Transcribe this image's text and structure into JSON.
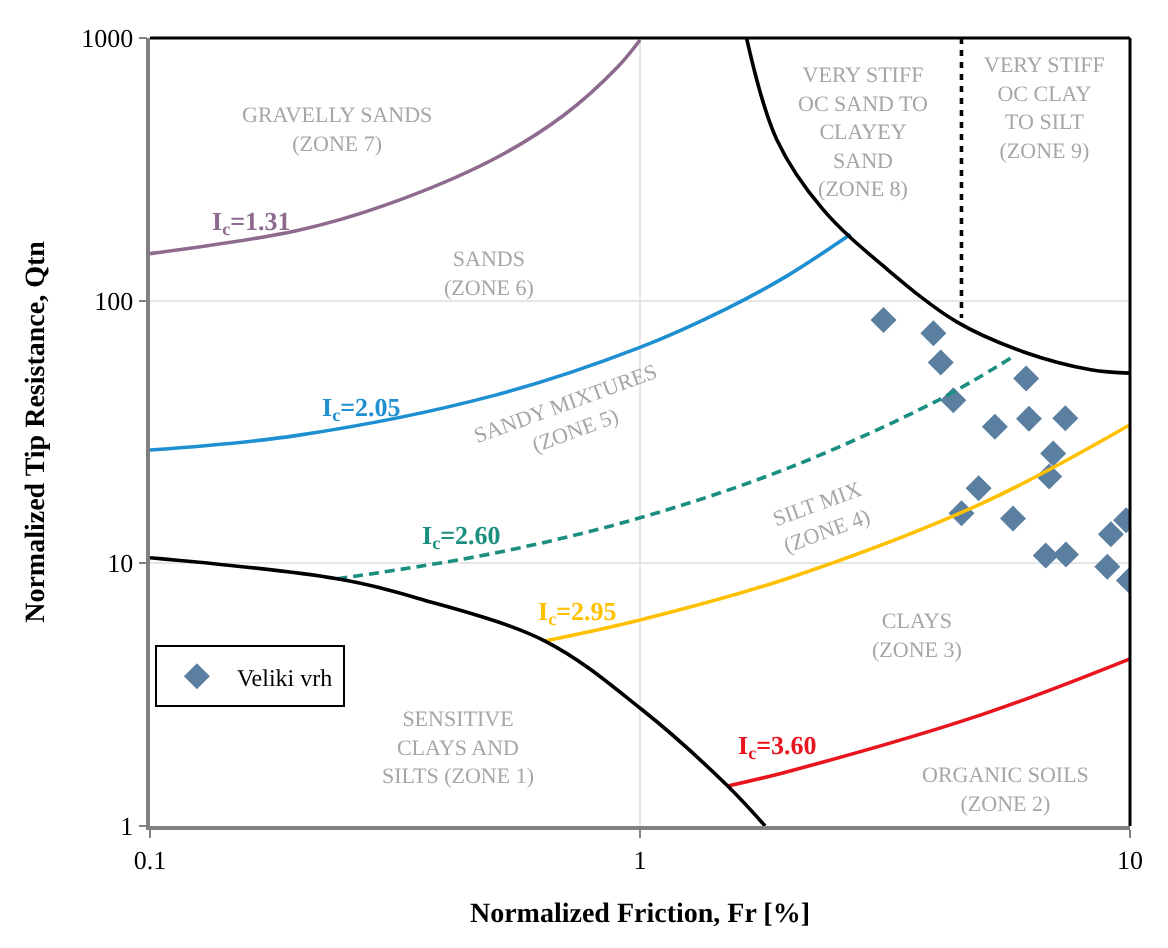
{
  "chart_data": {
    "type": "scatter",
    "xlabel": "Normalized Friction, Fr [%]",
    "ylabel": "Normalized Tip Resistance, Qtn",
    "log": "xy",
    "xlim": [
      0.1,
      10
    ],
    "ylim": [
      1,
      1000
    ],
    "xticks": [
      0.1,
      1,
      10
    ],
    "yticks": [
      1,
      10,
      100,
      1000
    ],
    "grid": true,
    "legend": "left",
    "series": [
      {
        "name": "Veliki vrh",
        "type": "scatter",
        "marker": "diamond",
        "color": "#5b7fa0",
        "x": [
          3.14,
          3.97,
          4.11,
          6.14,
          4.36,
          5.3,
          6.22,
          7.38,
          6.97,
          6.84,
          4.91,
          4.53,
          5.77,
          6.73,
          7.4,
          9.14,
          9.82,
          8.99,
          9.95
        ],
        "values": [
          84.4,
          75.2,
          58.2,
          50.6,
          41.8,
          33.1,
          35.5,
          35.7,
          26.2,
          21.4,
          19.3,
          15.5,
          14.8,
          10.7,
          10.8,
          12.9,
          14.6,
          9.7,
          8.6
        ]
      },
      {
        "name": "I$_{c}$=1.31",
        "type": "line",
        "line_style": "solid",
        "color": "#8e6a8e",
        "x": [
          0.1,
          0.2,
          0.3,
          0.5,
          0.7,
          0.9,
          1.0
        ],
        "values": [
          151,
          185,
          230,
          344,
          509,
          775,
          983
        ]
      },
      {
        "name": "I$_{c}$=2.05",
        "type": "line",
        "line_style": "solid",
        "color": "#1e8fd0",
        "x": [
          0.1,
          0.2,
          0.5,
          1,
          1.5,
          2,
          2.69
        ],
        "values": [
          27.0,
          30.7,
          43.4,
          66.4,
          93.1,
          124.6,
          179
        ]
      },
      {
        "name": "I$_{c}$=2.60",
        "type": "line",
        "line_style": "dashed",
        "color": "#1a8f80",
        "x": [
          0.241,
          0.5,
          1,
          2,
          4,
          5.78
        ],
        "values": [
          8.73,
          10.9,
          14.9,
          23.0,
          41.2,
          61.3
        ]
      },
      {
        "name": "I$_{c}$=2.95",
        "type": "line",
        "line_style": "solid",
        "color": "#ffc000",
        "x": [
          0.64,
          1,
          2,
          5,
          10
        ],
        "values": [
          5.06,
          6.08,
          8.76,
          16.96,
          33.7
        ]
      },
      {
        "name": "I$_{c}$=3.60",
        "type": "line",
        "line_style": "solid",
        "color": "#e8141e",
        "x": [
          1.51,
          2,
          5,
          10
        ],
        "values": [
          1.42,
          1.61,
          2.66,
          4.33
        ]
      },
      {
        "type": "line",
        "line_style": "solid",
        "color": "#000000",
        "x": [
          0.1,
          0.241,
          0.353,
          0.64,
          1.01,
          1.51,
          1.8
        ],
        "values": [
          10.5,
          8.73,
          7.35,
          5.06,
          2.77,
          1.42,
          1.0
        ]
      },
      {
        "type": "line",
        "line_style": "solid",
        "color": "#000000",
        "x": [
          1.65,
          1.9,
          2.36,
          3.19,
          4.43,
          6.07,
          8.32,
          10
        ],
        "values": [
          1000,
          412,
          223,
          132,
          83,
          63.8,
          54.6,
          53.0
        ]
      },
      {
        "type": "line",
        "line_style": "dotted",
        "color": "#000000",
        "x": [
          4.53,
          4.53
        ],
        "values": [
          1000,
          86
        ]
      }
    ],
    "annotations": [
      "GRAVELLY SANDS\n(ZONE 7)",
      "SANDS\n(ZONE 6)",
      "SANDY MIXTURES\n(ZONE 5)",
      "SILT MIX\n(ZONE 4)",
      "CLAYS\n(ZONE 3)",
      "SENSITIVE\nCLAYS AND\nSILTS (ZONE 1)",
      "ORGANIC SOILS\n(ZONE 2)",
      "VERY STIFF\nOC SAND TO\nCLAYEY\nSAND\n(ZONE 8)",
      "VERY STIFF\nOC CLAY\nTO SILT\n(ZONE 9)"
    ]
  }
}
